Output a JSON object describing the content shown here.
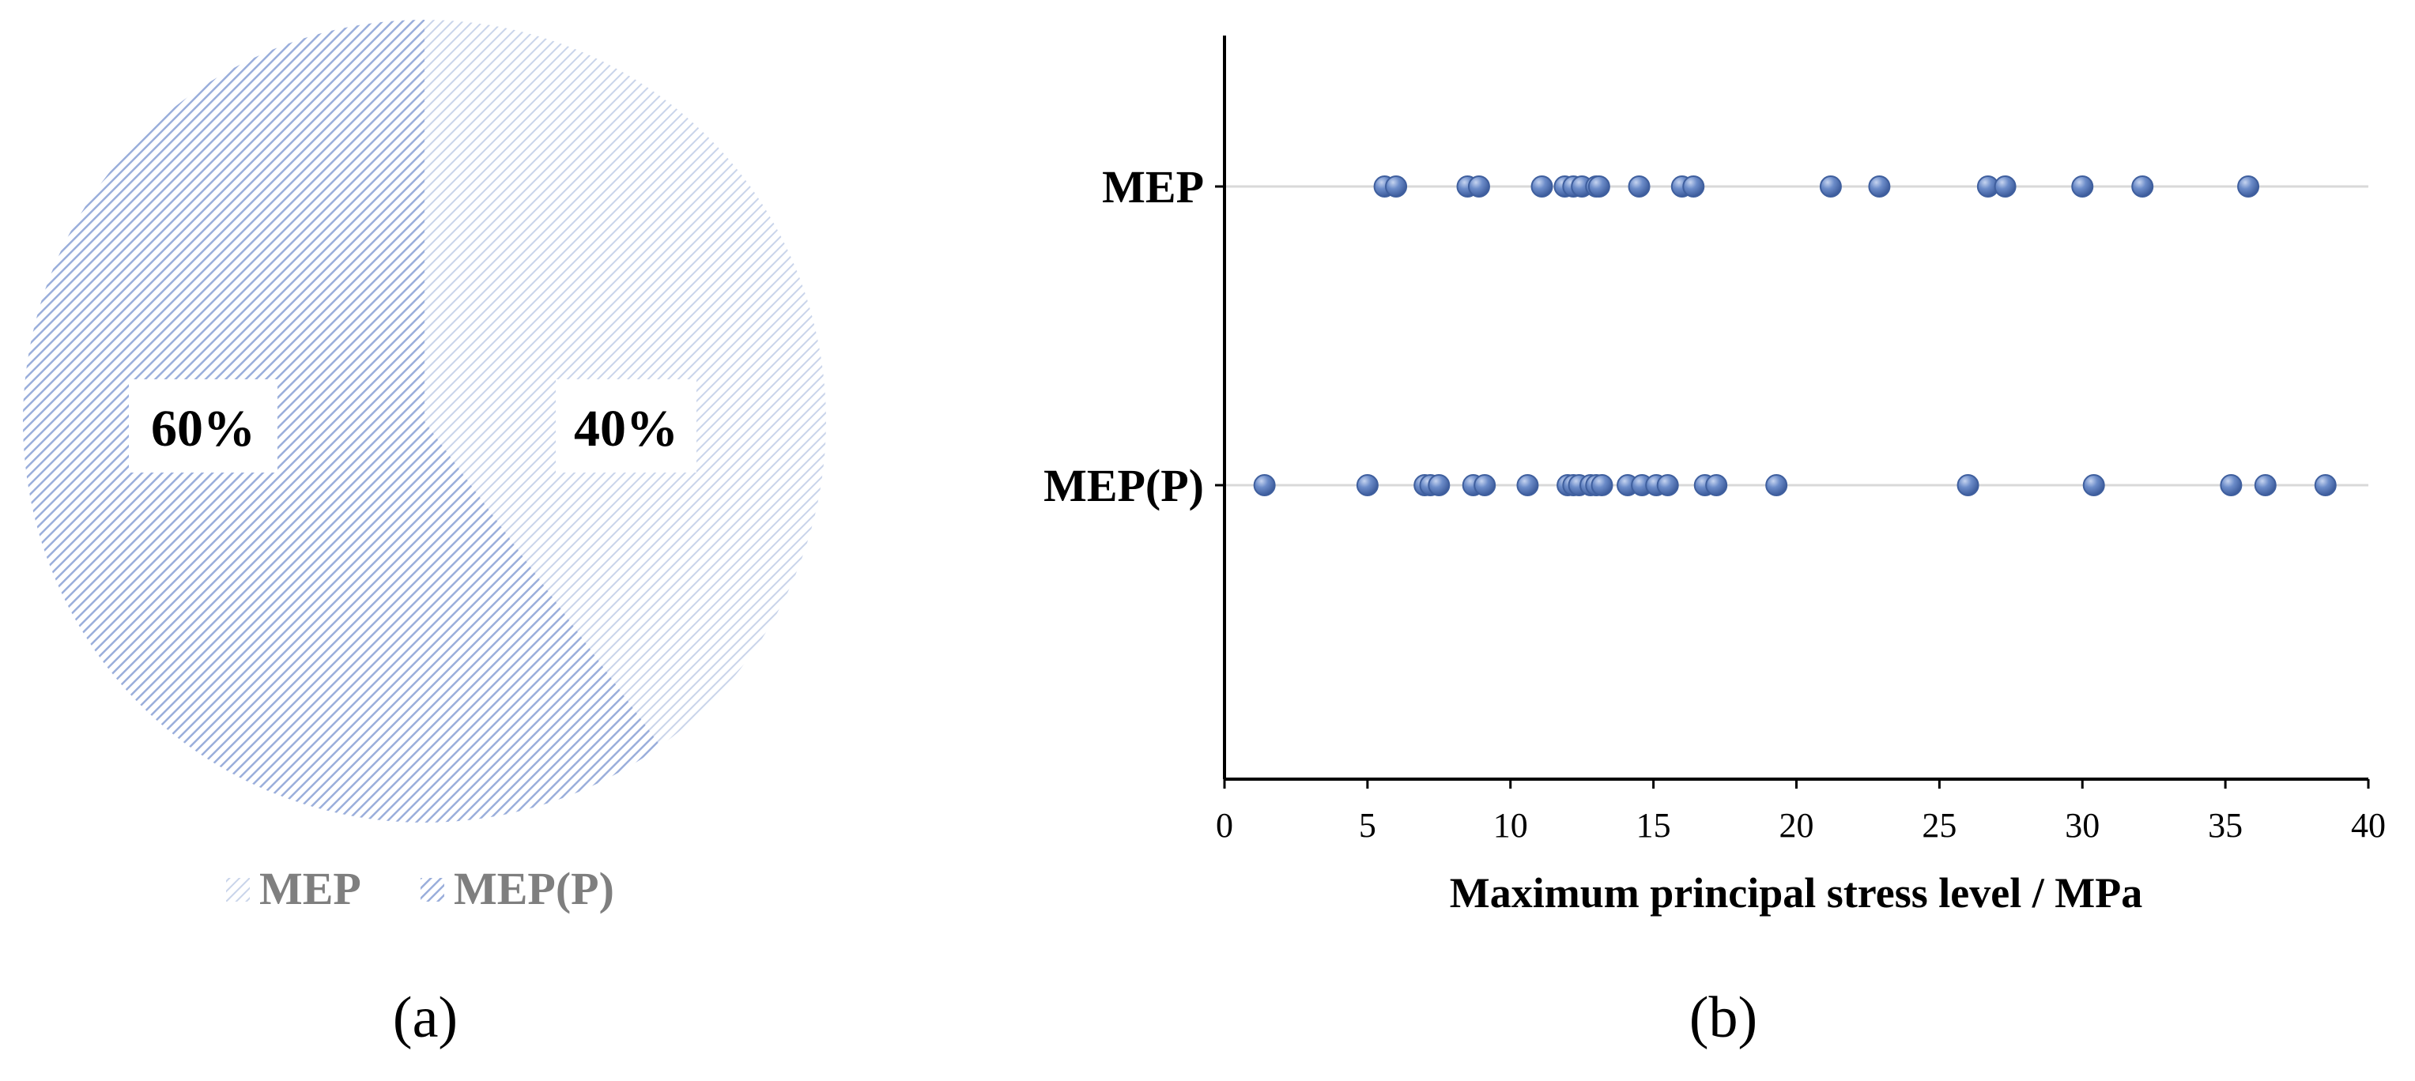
{
  "colors": {
    "mep_hatch": "#c9d4ea",
    "mep_p_hatch": "#9aaedb",
    "point_fill": "#5a7cbc",
    "point_stroke": "#3f5f9e",
    "axis": "#000000",
    "gridline": "#d9d9d9",
    "label_text": "#000000",
    "legend_text": "#7f7f7f"
  },
  "chart_data": [
    {
      "type": "pie",
      "panel_label": "(a)",
      "slices": [
        {
          "name": "MEP",
          "value": 40,
          "label": "40%"
        },
        {
          "name": "MEP(P)",
          "value": 60,
          "label": "60%"
        }
      ],
      "legend": [
        "MEP",
        "MEP(P)"
      ],
      "legend_position": "bottom"
    },
    {
      "type": "scatter",
      "panel_label": "(b)",
      "xlabel": "Maximum principal stress level / MPa",
      "xlim": [
        0,
        40
      ],
      "xticks": [
        "0",
        "5",
        "10",
        "15",
        "20",
        "25",
        "30",
        "35",
        "40"
      ],
      "xtick_values": [
        0,
        5,
        10,
        15,
        20,
        25,
        30,
        35,
        40
      ],
      "categories": [
        "MEP",
        "MEP(P)"
      ],
      "gridlines": "horizontal",
      "series": [
        {
          "name": "MEP",
          "values": [
            5.6,
            6.0,
            8.5,
            8.9,
            11.1,
            11.9,
            12.2,
            12.5,
            13.0,
            13.1,
            14.5,
            16.0,
            16.4,
            21.2,
            22.9,
            26.7,
            27.3,
            30.0,
            32.1,
            35.8
          ]
        },
        {
          "name": "MEP(P)",
          "values": [
            1.4,
            5.0,
            7.0,
            7.2,
            7.5,
            8.7,
            9.1,
            10.6,
            12.0,
            12.2,
            12.4,
            12.8,
            13.0,
            13.2,
            14.1,
            14.6,
            15.1,
            15.5,
            16.8,
            17.2,
            19.3,
            26.0,
            30.4,
            35.2,
            36.4,
            38.5
          ]
        }
      ]
    }
  ]
}
